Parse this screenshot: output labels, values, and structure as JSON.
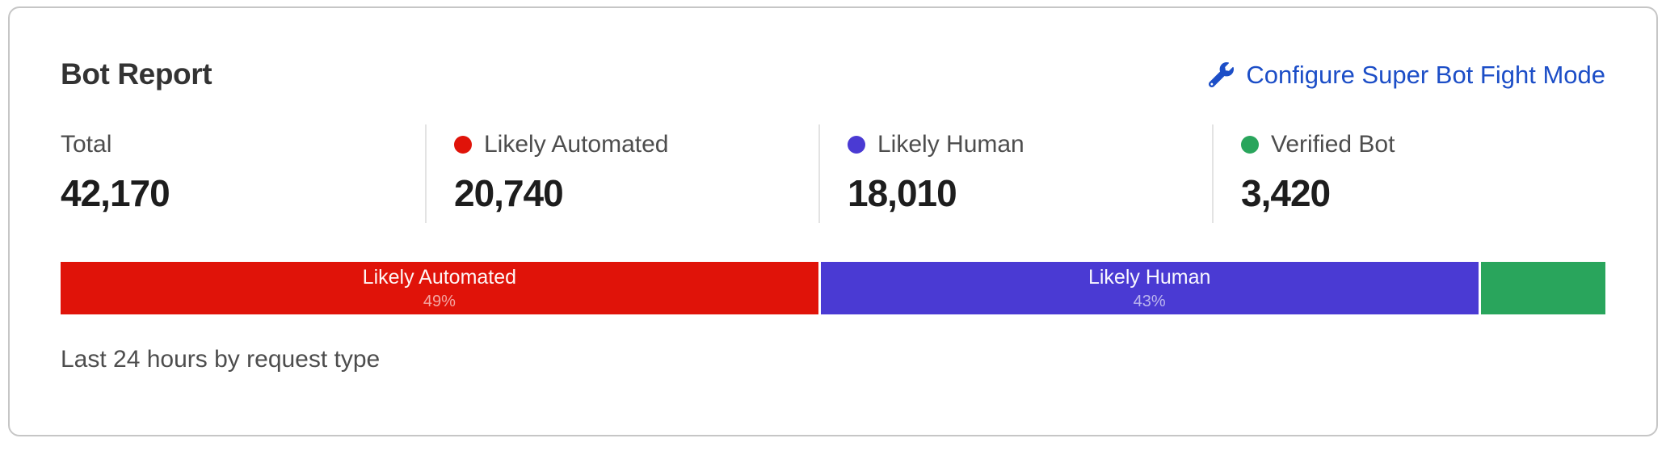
{
  "card": {
    "title": "Bot Report",
    "action_link": {
      "label": "Configure Super Bot Fight Mode",
      "icon": "wrench-icon"
    },
    "footer_caption": "Last 24 hours by request type"
  },
  "stats": [
    {
      "label": "Total",
      "value": "42,170",
      "dot_color": null
    },
    {
      "label": "Likely Automated",
      "value": "20,740",
      "dot_color": "#e01309"
    },
    {
      "label": "Likely Human",
      "value": "18,010",
      "dot_color": "#4a3ad3"
    },
    {
      "label": "Verified Bot",
      "value": "3,420",
      "dot_color": "#29a55c"
    }
  ],
  "chart_data": {
    "type": "bar",
    "variant": "stacked-horizontal-single",
    "title": "Bot Report",
    "caption": "Last 24 hours by request type",
    "total": 42170,
    "segments": [
      {
        "name": "Likely Automated",
        "value": 20740,
        "percent_label": "49%",
        "width_pct": 49.2,
        "color": "#e01309"
      },
      {
        "name": "Likely Human",
        "value": 18010,
        "percent_label": "43%",
        "width_pct": 42.7,
        "color": "#4a3ad3"
      },
      {
        "name": "Verified Bot",
        "value": 3420,
        "percent_label": "",
        "width_pct": 8.1,
        "color": "#29a55c"
      }
    ]
  },
  "colors": {
    "link_blue": "#1c4ec7",
    "likely_automated_red": "#e01309",
    "likely_human_indigo": "#4a3ad3",
    "verified_bot_green": "#29a55c",
    "card_border": "#c6c6c6",
    "divider": "#e3e3e3"
  }
}
